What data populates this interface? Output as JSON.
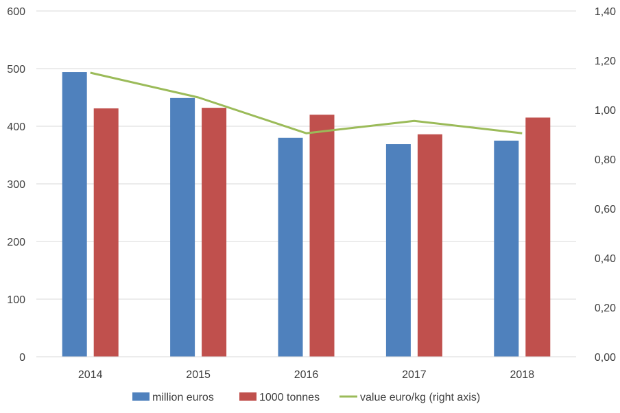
{
  "chart_data": {
    "type": "bar",
    "categories": [
      "2014",
      "2015",
      "2016",
      "2017",
      "2018"
    ],
    "series": [
      {
        "name": "million euros",
        "kind": "bar",
        "axis": "left",
        "color": "#4F81BD",
        "values": [
          494,
          449,
          380,
          369,
          375
        ]
      },
      {
        "name": "1000 tonnes",
        "kind": "bar",
        "axis": "left",
        "color": "#C0504D",
        "values": [
          431,
          432,
          420,
          386,
          415
        ]
      },
      {
        "name": "value euro/kg (right axis)",
        "kind": "line",
        "axis": "right",
        "color": "#9BBB59",
        "values": [
          1.15,
          1.05,
          0.905,
          0.955,
          0.905
        ]
      }
    ],
    "y_left": {
      "ylim": [
        0,
        600
      ],
      "ticks": [
        "0",
        "100",
        "200",
        "300",
        "400",
        "500",
        "600"
      ]
    },
    "y_right": {
      "ylim": [
        0,
        1.4
      ],
      "ticks": [
        "0,00",
        "0,20",
        "0,40",
        "0,60",
        "0,80",
        "1,00",
        "1,20",
        "1,40"
      ]
    },
    "grid": true,
    "legend_position": "bottom"
  }
}
